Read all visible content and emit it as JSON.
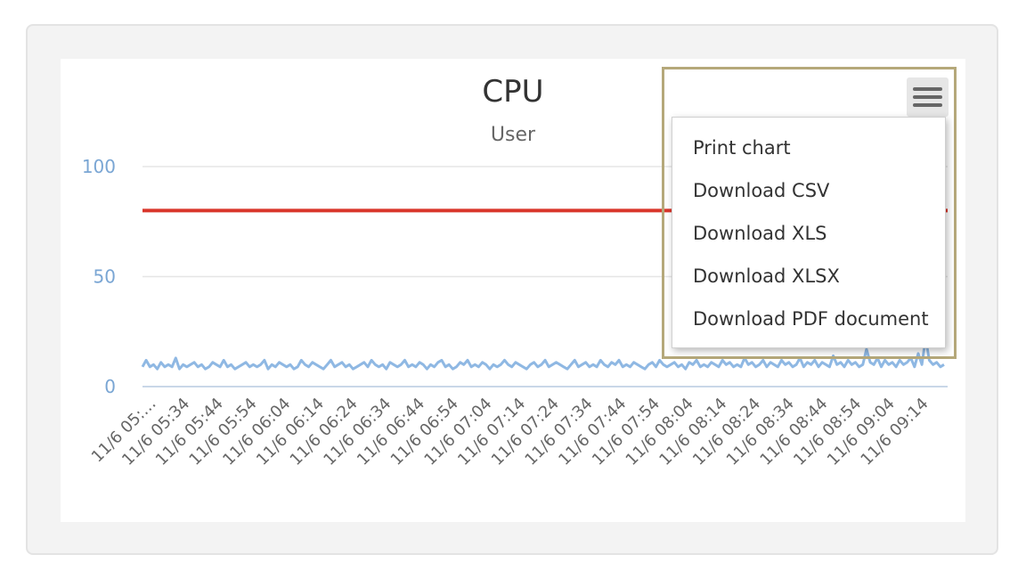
{
  "chart_data": {
    "type": "line",
    "title": "CPU",
    "subtitle": "User",
    "xlabel": "",
    "ylabel": "",
    "ylim": [
      0,
      100
    ],
    "y_ticks": [
      "0",
      "50",
      "100"
    ],
    "x_tick_labels": [
      "11/6 05:…",
      "11/6 05:34",
      "11/6 05:44",
      "11/6 05:54",
      "11/6 06:04",
      "11/6 06:14",
      "11/6 06:24",
      "11/6 06:34",
      "11/6 06:44",
      "11/6 06:54",
      "11/6 07:04",
      "11/6 07:14",
      "11/6 07:24",
      "11/6 07:34",
      "11/6 07:44",
      "11/6 07:54",
      "11/6 08:04",
      "11/6 08:14",
      "11/6 08:24",
      "11/6 08:34",
      "11/6 08:44",
      "11/6 08:54",
      "11/6 09:04",
      "11/6 09:14"
    ],
    "threshold": {
      "value": 80,
      "color": "#d9362b"
    },
    "series": [
      {
        "color": "#8fb8e3",
        "values": [
          9,
          12,
          9,
          10,
          8,
          11,
          9,
          10,
          9,
          13,
          8,
          10,
          9,
          10,
          11,
          9,
          10,
          8,
          9,
          11,
          10,
          9,
          12,
          9,
          10,
          8,
          9,
          10,
          11,
          9,
          10,
          9,
          10,
          12,
          8,
          10,
          9,
          11,
          10,
          9,
          10,
          8,
          9,
          12,
          10,
          9,
          11,
          10,
          9,
          8,
          10,
          12,
          9,
          10,
          11,
          9,
          10,
          8,
          9,
          10,
          11,
          9,
          12,
          10,
          9,
          10,
          8,
          11,
          10,
          9,
          10,
          12,
          9,
          10,
          9,
          11,
          10,
          8,
          10,
          9,
          11,
          12,
          9,
          10,
          8,
          9,
          11,
          10,
          12,
          9,
          10,
          9,
          11,
          10,
          8,
          10,
          9,
          10,
          12,
          10,
          9,
          11,
          10,
          9,
          8,
          10,
          11,
          9,
          10,
          12,
          9,
          10,
          11,
          10,
          9,
          8,
          10,
          12,
          9,
          10,
          11,
          9,
          10,
          9,
          12,
          10,
          9,
          11,
          10,
          12,
          9,
          10,
          9,
          11,
          10,
          9,
          8,
          10,
          11,
          9,
          12,
          10,
          9,
          10,
          11,
          9,
          10,
          8,
          11,
          10,
          12,
          9,
          10,
          9,
          11,
          10,
          9,
          12,
          10,
          11,
          9,
          10,
          9,
          13,
          10,
          11,
          9,
          10,
          12,
          9,
          11,
          10,
          9,
          12,
          10,
          11,
          9,
          10,
          13,
          9,
          11,
          10,
          12,
          9,
          11,
          10,
          9,
          14,
          10,
          11,
          9,
          12,
          10,
          11,
          9,
          10,
          17,
          11,
          10,
          13,
          9,
          12,
          10,
          11,
          9,
          12,
          10,
          11,
          13,
          9,
          15,
          10,
          22,
          12,
          10,
          11,
          9,
          10
        ]
      }
    ],
    "grid": true
  },
  "export_menu": {
    "button_icon": "hamburger-menu-icon",
    "items": [
      "Print chart",
      "Download CSV",
      "Download XLS",
      "Download XLSX",
      "Download PDF document"
    ]
  }
}
